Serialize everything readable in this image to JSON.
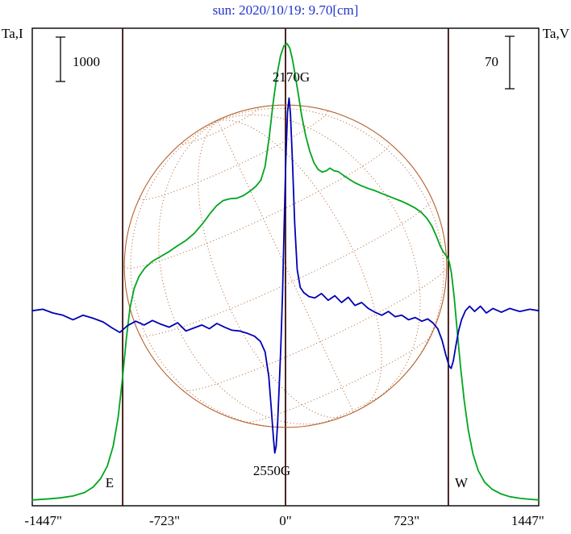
{
  "title": "sun: 2020/10/19: 9.70[cm]",
  "labels": {
    "left_axis": "Ta,I",
    "right_axis": "Ta,V",
    "east_limb": "E",
    "west_limb": "W"
  },
  "colors": {
    "title": "#2233cc",
    "text": "#000000",
    "frame": "#000000",
    "limb_lines": "#3a0d0d",
    "grid": "#b4602a",
    "intensity": "#00a51e",
    "polarization": "#0000b4"
  },
  "chart_data": {
    "type": "line",
    "title": "sun: 2020/10/19: 9.70[cm]",
    "x_unit": "arcsec",
    "xlim": [
      -1513,
      1513
    ],
    "x_ticks": [
      -1447,
      -723,
      0,
      723,
      1447
    ],
    "x_tick_labels": [
      "-1447\"",
      "-723\"",
      "0\"",
      "723\"",
      "1447\""
    ],
    "limb_lines_arcsec": [
      -973,
      0,
      973
    ],
    "solar_disk": {
      "radius_arcsec": 963,
      "b0_deg": 6,
      "p_deg": 25,
      "lat_step_deg": 25,
      "lon_step_deg": 25
    },
    "scale_bars": [
      {
        "label": "1000",
        "value": 1000,
        "series": "Ta,I"
      },
      {
        "label": "70",
        "value": 70,
        "series": "Ta,V"
      }
    ],
    "annotations": [
      {
        "text": "2170G"
      },
      {
        "text": "2550G"
      }
    ],
    "series": [
      {
        "name": "Ta,I",
        "axis": "left",
        "color": "#00a51e",
        "points": [
          [
            -1513,
            40
          ],
          [
            -1430,
            60
          ],
          [
            -1350,
            85
          ],
          [
            -1270,
            130
          ],
          [
            -1200,
            210
          ],
          [
            -1150,
            330
          ],
          [
            -1105,
            520
          ],
          [
            -1065,
            800
          ],
          [
            -1030,
            1250
          ],
          [
            -1000,
            1900
          ],
          [
            -975,
            2750
          ],
          [
            -952,
            3650
          ],
          [
            -930,
            4350
          ],
          [
            -905,
            4800
          ],
          [
            -875,
            5080
          ],
          [
            -840,
            5270
          ],
          [
            -795,
            5420
          ],
          [
            -745,
            5530
          ],
          [
            -695,
            5640
          ],
          [
            -645,
            5770
          ],
          [
            -595,
            5890
          ],
          [
            -545,
            6050
          ],
          [
            -495,
            6270
          ],
          [
            -452,
            6490
          ],
          [
            -412,
            6670
          ],
          [
            -372,
            6790
          ],
          [
            -332,
            6830
          ],
          [
            -292,
            6840
          ],
          [
            -252,
            6900
          ],
          [
            -212,
            7000
          ],
          [
            -177,
            7110
          ],
          [
            -147,
            7250
          ],
          [
            -122,
            7560
          ],
          [
            -98,
            8200
          ],
          [
            -75,
            8950
          ],
          [
            -52,
            9600
          ],
          [
            -30,
            10050
          ],
          [
            -10,
            10270
          ],
          [
            8,
            10330
          ],
          [
            25,
            10230
          ],
          [
            40,
            10000
          ],
          [
            58,
            9620
          ],
          [
            78,
            9150
          ],
          [
            98,
            8680
          ],
          [
            120,
            8260
          ],
          [
            145,
            7900
          ],
          [
            170,
            7640
          ],
          [
            195,
            7490
          ],
          [
            220,
            7430
          ],
          [
            245,
            7460
          ],
          [
            265,
            7520
          ],
          [
            290,
            7460
          ],
          [
            315,
            7440
          ],
          [
            345,
            7360
          ],
          [
            380,
            7270
          ],
          [
            415,
            7190
          ],
          [
            455,
            7120
          ],
          [
            495,
            7060
          ],
          [
            535,
            7010
          ],
          [
            575,
            6950
          ],
          [
            615,
            6890
          ],
          [
            655,
            6830
          ],
          [
            695,
            6770
          ],
          [
            735,
            6700
          ],
          [
            775,
            6620
          ],
          [
            812,
            6520
          ],
          [
            845,
            6390
          ],
          [
            875,
            6210
          ],
          [
            902,
            5980
          ],
          [
            925,
            5760
          ],
          [
            945,
            5620
          ],
          [
            962,
            5540
          ],
          [
            978,
            5420
          ],
          [
            992,
            5150
          ],
          [
            1008,
            4600
          ],
          [
            1026,
            3850
          ],
          [
            1046,
            3050
          ],
          [
            1068,
            2280
          ],
          [
            1092,
            1620
          ],
          [
            1120,
            1080
          ],
          [
            1152,
            700
          ],
          [
            1190,
            440
          ],
          [
            1235,
            280
          ],
          [
            1285,
            180
          ],
          [
            1340,
            115
          ],
          [
            1405,
            75
          ],
          [
            1470,
            52
          ],
          [
            1513,
            42
          ]
        ]
      },
      {
        "name": "Ta,V",
        "axis": "right",
        "color": "#0000b4",
        "points": [
          [
            -1513,
            3
          ],
          [
            -1450,
            5
          ],
          [
            -1390,
            0
          ],
          [
            -1330,
            -3
          ],
          [
            -1270,
            -9
          ],
          [
            -1210,
            -3
          ],
          [
            -1150,
            -7
          ],
          [
            -1090,
            -12
          ],
          [
            -1035,
            -20
          ],
          [
            -990,
            -26
          ],
          [
            -945,
            -17
          ],
          [
            -895,
            -11
          ],
          [
            -845,
            -16
          ],
          [
            -795,
            -10
          ],
          [
            -745,
            -15
          ],
          [
            -695,
            -19
          ],
          [
            -645,
            -13
          ],
          [
            -595,
            -24
          ],
          [
            -548,
            -20
          ],
          [
            -500,
            -16
          ],
          [
            -455,
            -21
          ],
          [
            -410,
            -14
          ],
          [
            -365,
            -19
          ],
          [
            -320,
            -23
          ],
          [
            -275,
            -24
          ],
          [
            -230,
            -27
          ],
          [
            -185,
            -31
          ],
          [
            -150,
            -38
          ],
          [
            -122,
            -52
          ],
          [
            -100,
            -85
          ],
          [
            -85,
            -128
          ],
          [
            -72,
            -168
          ],
          [
            -64,
            -187
          ],
          [
            -56,
            -178
          ],
          [
            -47,
            -148
          ],
          [
            -38,
            -100
          ],
          [
            -28,
            -45
          ],
          [
            -18,
            25
          ],
          [
            -8,
            115
          ],
          [
            2,
            205
          ],
          [
            12,
            268
          ],
          [
            21,
            287
          ],
          [
            30,
            265
          ],
          [
            42,
            200
          ],
          [
            55,
            120
          ],
          [
            70,
            58
          ],
          [
            88,
            34
          ],
          [
            110,
            27
          ],
          [
            140,
            22
          ],
          [
            175,
            20
          ],
          [
            215,
            26
          ],
          [
            255,
            17
          ],
          [
            295,
            23
          ],
          [
            335,
            14
          ],
          [
            375,
            21
          ],
          [
            415,
            10
          ],
          [
            455,
            14
          ],
          [
            495,
            6
          ],
          [
            535,
            1
          ],
          [
            575,
            -3
          ],
          [
            615,
            2
          ],
          [
            655,
            -5
          ],
          [
            695,
            -3
          ],
          [
            735,
            -9
          ],
          [
            775,
            -6
          ],
          [
            815,
            -11
          ],
          [
            850,
            -8
          ],
          [
            880,
            -13
          ],
          [
            910,
            -21
          ],
          [
            935,
            -36
          ],
          [
            958,
            -56
          ],
          [
            978,
            -71
          ],
          [
            990,
            -74
          ],
          [
            1003,
            -64
          ],
          [
            1018,
            -44
          ],
          [
            1034,
            -24
          ],
          [
            1052,
            -9
          ],
          [
            1075,
            3
          ],
          [
            1100,
            9
          ],
          [
            1130,
            2
          ],
          [
            1165,
            9
          ],
          [
            1200,
            0
          ],
          [
            1240,
            6
          ],
          [
            1290,
            1
          ],
          [
            1340,
            6
          ],
          [
            1400,
            2
          ],
          [
            1460,
            5
          ],
          [
            1513,
            3
          ]
        ]
      }
    ]
  }
}
